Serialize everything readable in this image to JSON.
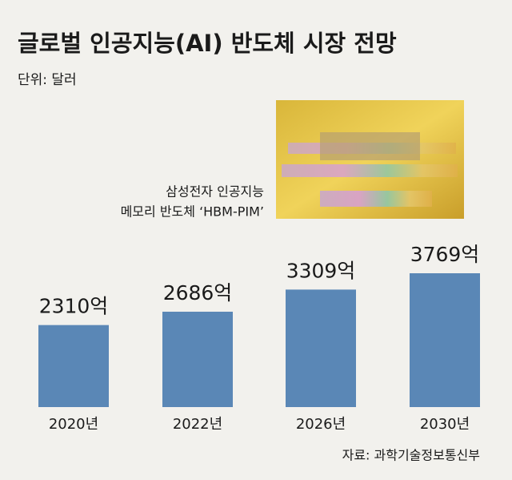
{
  "chart_data": {
    "type": "bar",
    "title": "글로벌 인공지능(AI) 반도체 시장 전망",
    "subtitle": "단위: 달러",
    "annotation": [
      "삼성전자 인공지능",
      "메모리 반도체 ‘HBM-PIM’"
    ],
    "source": "자료: 과학기술정보통신부",
    "categories": [
      "2020년",
      "2022년",
      "2026년",
      "2030년"
    ],
    "values": [
      2310,
      2686,
      3309,
      3769
    ],
    "value_labels": [
      "2310억",
      "2686억",
      "3309억",
      "3769억"
    ],
    "color": "#5a87b6"
  }
}
